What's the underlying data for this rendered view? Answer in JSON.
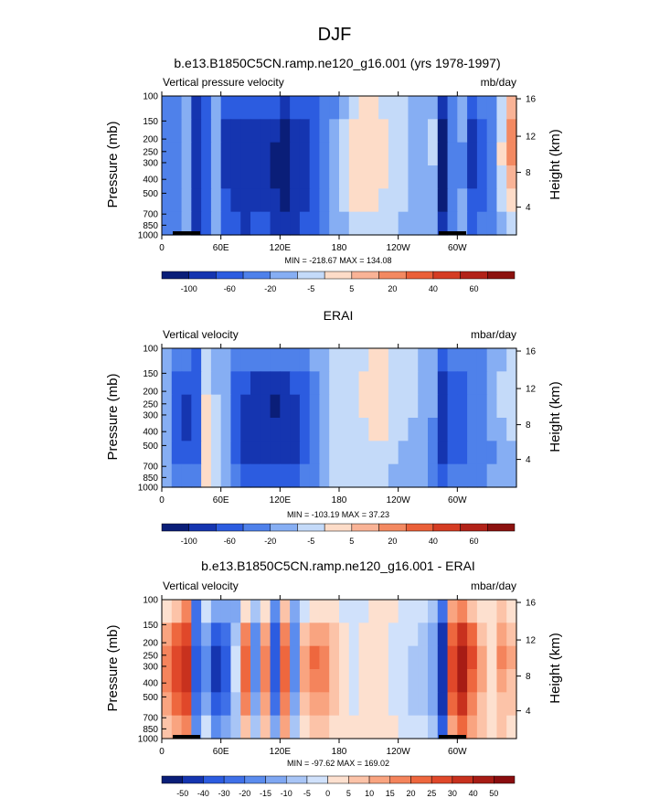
{
  "figure_title": "DJF",
  "chart_data": [
    {
      "type": "heatmap",
      "title": "b.e13.B1850C5CN.ramp.ne120_g16.001 (yrs 1978-1997)",
      "left_label": "Vertical pressure velocity",
      "right_label": "mb/day",
      "ylabel": "Pressure (mb)",
      "ylabel_right": "Height (km)",
      "x_ticks": [
        "0",
        "60E",
        "120E",
        "180",
        "120W",
        "60W"
      ],
      "y_ticks": [
        "100",
        "150",
        "200",
        "250",
        "300",
        "400",
        "500",
        "700",
        "850",
        "1000"
      ],
      "y_right_ticks": [
        "16",
        "12",
        "8",
        "4"
      ],
      "min_max": "MIN = -218.67  MAX = 134.08",
      "colorbar_labels": [
        "-100",
        "-60",
        "-20",
        "-5",
        "5",
        "20",
        "40",
        "60"
      ],
      "field": [
        [
          3,
          3,
          4,
          1,
          2,
          4,
          2,
          2,
          2,
          2,
          2,
          2,
          1,
          2,
          2,
          2,
          3,
          3,
          4,
          5,
          6,
          6,
          5,
          5,
          5,
          4,
          4,
          4,
          1,
          3,
          4,
          2,
          3,
          3,
          5,
          7
        ],
        [
          3,
          3,
          4,
          1,
          2,
          4,
          1,
          1,
          1,
          1,
          1,
          1,
          0,
          1,
          1,
          2,
          3,
          4,
          5,
          6,
          6,
          6,
          6,
          5,
          5,
          4,
          4,
          5,
          0,
          3,
          4,
          1,
          2,
          3,
          5,
          8
        ],
        [
          3,
          3,
          4,
          1,
          2,
          4,
          1,
          1,
          1,
          1,
          1,
          0,
          0,
          1,
          1,
          2,
          3,
          4,
          5,
          6,
          6,
          6,
          6,
          5,
          5,
          4,
          4,
          5,
          0,
          3,
          3,
          1,
          2,
          3,
          6,
          8
        ],
        [
          3,
          3,
          4,
          1,
          2,
          4,
          1,
          1,
          1,
          1,
          1,
          0,
          0,
          1,
          1,
          2,
          3,
          4,
          5,
          6,
          6,
          6,
          6,
          5,
          5,
          4,
          4,
          4,
          0,
          3,
          3,
          1,
          2,
          3,
          5,
          7
        ],
        [
          3,
          3,
          4,
          1,
          2,
          4,
          2,
          1,
          1,
          1,
          1,
          1,
          0,
          1,
          1,
          2,
          3,
          4,
          5,
          6,
          6,
          6,
          5,
          5,
          5,
          4,
          4,
          4,
          0,
          3,
          4,
          2,
          2,
          3,
          5,
          6
        ],
        [
          3,
          3,
          4,
          1,
          2,
          4,
          2,
          2,
          1,
          2,
          2,
          1,
          1,
          1,
          2,
          2,
          3,
          4,
          4,
          5,
          5,
          5,
          5,
          5,
          4,
          4,
          4,
          4,
          1,
          3,
          4,
          2,
          3,
          3,
          4,
          5
        ]
      ]
    },
    {
      "type": "heatmap",
      "title": "ERAI",
      "left_label": "Vertical velocity",
      "right_label": "mbar/day",
      "ylabel": "Pressure (mb)",
      "ylabel_right": "Height (km)",
      "x_ticks": [
        "0",
        "60E",
        "120E",
        "180",
        "120W",
        "60W"
      ],
      "y_ticks": [
        "100",
        "150",
        "200",
        "250",
        "300",
        "400",
        "500",
        "700",
        "850",
        "1000"
      ],
      "y_right_ticks": [
        "16",
        "12",
        "8",
        "4"
      ],
      "min_max": "MIN = -103.19  MAX =  37.23",
      "colorbar_labels": [
        "-100",
        "-60",
        "-20",
        "-5",
        "5",
        "20",
        "40",
        "60"
      ],
      "field": [
        [
          4,
          3,
          3,
          2,
          5,
          4,
          4,
          3,
          3,
          3,
          3,
          3,
          3,
          3,
          3,
          4,
          4,
          5,
          5,
          5,
          5,
          6,
          6,
          5,
          5,
          5,
          4,
          4,
          2,
          3,
          3,
          3,
          3,
          4,
          4,
          5
        ],
        [
          4,
          2,
          2,
          2,
          5,
          4,
          4,
          2,
          2,
          1,
          1,
          1,
          1,
          2,
          2,
          3,
          4,
          5,
          5,
          5,
          6,
          6,
          6,
          5,
          5,
          5,
          4,
          4,
          1,
          2,
          2,
          3,
          3,
          4,
          5,
          5
        ],
        [
          4,
          2,
          1,
          2,
          6,
          5,
          4,
          2,
          1,
          1,
          1,
          0,
          1,
          1,
          2,
          3,
          4,
          5,
          5,
          5,
          6,
          6,
          6,
          5,
          5,
          5,
          4,
          4,
          1,
          2,
          2,
          3,
          3,
          4,
          5,
          5
        ],
        [
          4,
          2,
          1,
          2,
          6,
          5,
          4,
          2,
          1,
          1,
          1,
          1,
          1,
          1,
          2,
          3,
          4,
          5,
          5,
          5,
          5,
          6,
          6,
          5,
          5,
          4,
          4,
          3,
          1,
          2,
          2,
          3,
          3,
          4,
          4,
          5
        ],
        [
          4,
          2,
          2,
          2,
          6,
          5,
          4,
          2,
          1,
          1,
          1,
          1,
          1,
          1,
          2,
          3,
          4,
          5,
          5,
          5,
          5,
          5,
          5,
          5,
          4,
          4,
          4,
          3,
          1,
          2,
          2,
          3,
          3,
          3,
          4,
          4
        ],
        [
          4,
          3,
          3,
          3,
          6,
          5,
          4,
          3,
          2,
          2,
          2,
          2,
          2,
          2,
          3,
          3,
          4,
          5,
          5,
          5,
          5,
          5,
          5,
          4,
          4,
          4,
          4,
          3,
          2,
          3,
          3,
          3,
          3,
          4,
          4,
          4
        ]
      ]
    },
    {
      "type": "heatmap",
      "title": "b.e13.B1850C5CN.ramp.ne120_g16.001 - ERAI",
      "left_label": "Vertical velocity",
      "right_label": "mbar/day",
      "ylabel": "Pressure (mb)",
      "ylabel_right": "Height (km)",
      "x_ticks": [
        "0",
        "60E",
        "120E",
        "180",
        "120W",
        "60W"
      ],
      "y_ticks": [
        "100",
        "150",
        "200",
        "250",
        "300",
        "400",
        "500",
        "700",
        "850",
        "1000"
      ],
      "y_right_ticks": [
        "16",
        "12",
        "8",
        "4"
      ],
      "min_max": "MIN = -97.62  MAX = 169.02",
      "colorbar_labels": [
        "-50",
        "-40",
        "-30",
        "-20",
        "-15",
        "-10",
        "-5",
        "0",
        "5",
        "10",
        "15",
        "20",
        "25",
        "30",
        "40",
        "50"
      ],
      "field": [
        [
          8,
          9,
          11,
          3,
          7,
          5,
          5,
          5,
          8,
          6,
          8,
          4,
          9,
          5,
          7,
          8,
          8,
          8,
          7,
          7,
          7,
          8,
          8,
          8,
          7,
          7,
          7,
          6,
          3,
          10,
          11,
          9,
          8,
          8,
          9,
          8
        ],
        [
          10,
          12,
          13,
          3,
          5,
          2,
          3,
          6,
          11,
          4,
          10,
          2,
          11,
          4,
          9,
          10,
          10,
          9,
          8,
          7,
          8,
          8,
          8,
          7,
          7,
          7,
          6,
          5,
          1,
          12,
          14,
          12,
          9,
          8,
          10,
          9
        ],
        [
          11,
          13,
          14,
          2,
          4,
          1,
          2,
          7,
          12,
          4,
          11,
          2,
          12,
          4,
          10,
          12,
          11,
          9,
          8,
          7,
          8,
          8,
          8,
          7,
          7,
          6,
          6,
          5,
          1,
          13,
          15,
          13,
          10,
          8,
          11,
          10
        ],
        [
          11,
          13,
          14,
          2,
          4,
          1,
          2,
          7,
          12,
          4,
          11,
          2,
          12,
          4,
          10,
          11,
          11,
          9,
          8,
          7,
          8,
          8,
          8,
          7,
          7,
          6,
          6,
          5,
          1,
          13,
          15,
          12,
          10,
          8,
          10,
          9
        ],
        [
          10,
          12,
          13,
          3,
          5,
          2,
          3,
          6,
          11,
          5,
          10,
          3,
          11,
          5,
          9,
          10,
          10,
          9,
          8,
          7,
          8,
          8,
          8,
          7,
          7,
          6,
          6,
          5,
          1,
          12,
          14,
          11,
          9,
          8,
          9,
          9
        ],
        [
          9,
          10,
          11,
          4,
          7,
          4,
          5,
          6,
          9,
          6,
          9,
          5,
          10,
          6,
          8,
          9,
          9,
          8,
          8,
          8,
          8,
          8,
          8,
          8,
          7,
          7,
          7,
          6,
          2,
          10,
          12,
          10,
          9,
          8,
          9,
          8
        ]
      ]
    }
  ],
  "colors": {
    "panel_ab": [
      "#0a1e78",
      "#1535b0",
      "#2c5ce0",
      "#4f81ea",
      "#86aef3",
      "#c4daf9",
      "#fddcc8",
      "#f9b396",
      "#f38961",
      "#ea6039",
      "#d53c23",
      "#b22218",
      "#8c120f"
    ],
    "panel_c": [
      "#0a1e78",
      "#1535b0",
      "#2c5ce0",
      "#3f70e8",
      "#5b8cee",
      "#7fa7f2",
      "#a8c5f6",
      "#d0e1fb",
      "#fde0cf",
      "#fcc3a8",
      "#f9a480",
      "#f4845c",
      "#ee673e",
      "#e0482a",
      "#c8311e",
      "#a71c15",
      "#8a0d0f"
    ]
  }
}
